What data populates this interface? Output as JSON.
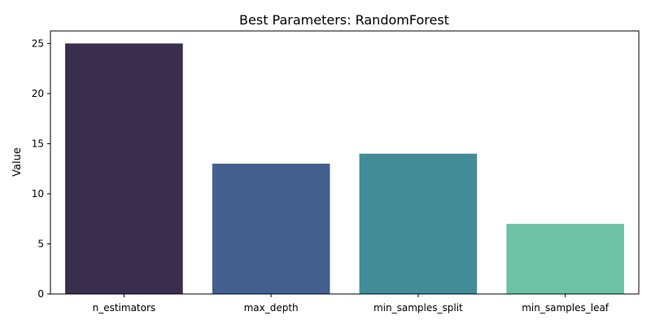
{
  "chart_data": {
    "type": "bar",
    "title": "Best Parameters: RandomForest",
    "xlabel": "",
    "ylabel": "Value",
    "categories": [
      "n_estimators",
      "max_depth",
      "min_samples_split",
      "min_samples_leaf"
    ],
    "values": [
      25,
      13,
      14,
      7
    ],
    "colors": [
      "#3a2e4f",
      "#43608f",
      "#428c98",
      "#6dc2a6"
    ],
    "ylim": [
      0,
      26.25
    ],
    "yticks": [
      0,
      5,
      10,
      15,
      20,
      25
    ],
    "grid": false,
    "legend": "none"
  }
}
